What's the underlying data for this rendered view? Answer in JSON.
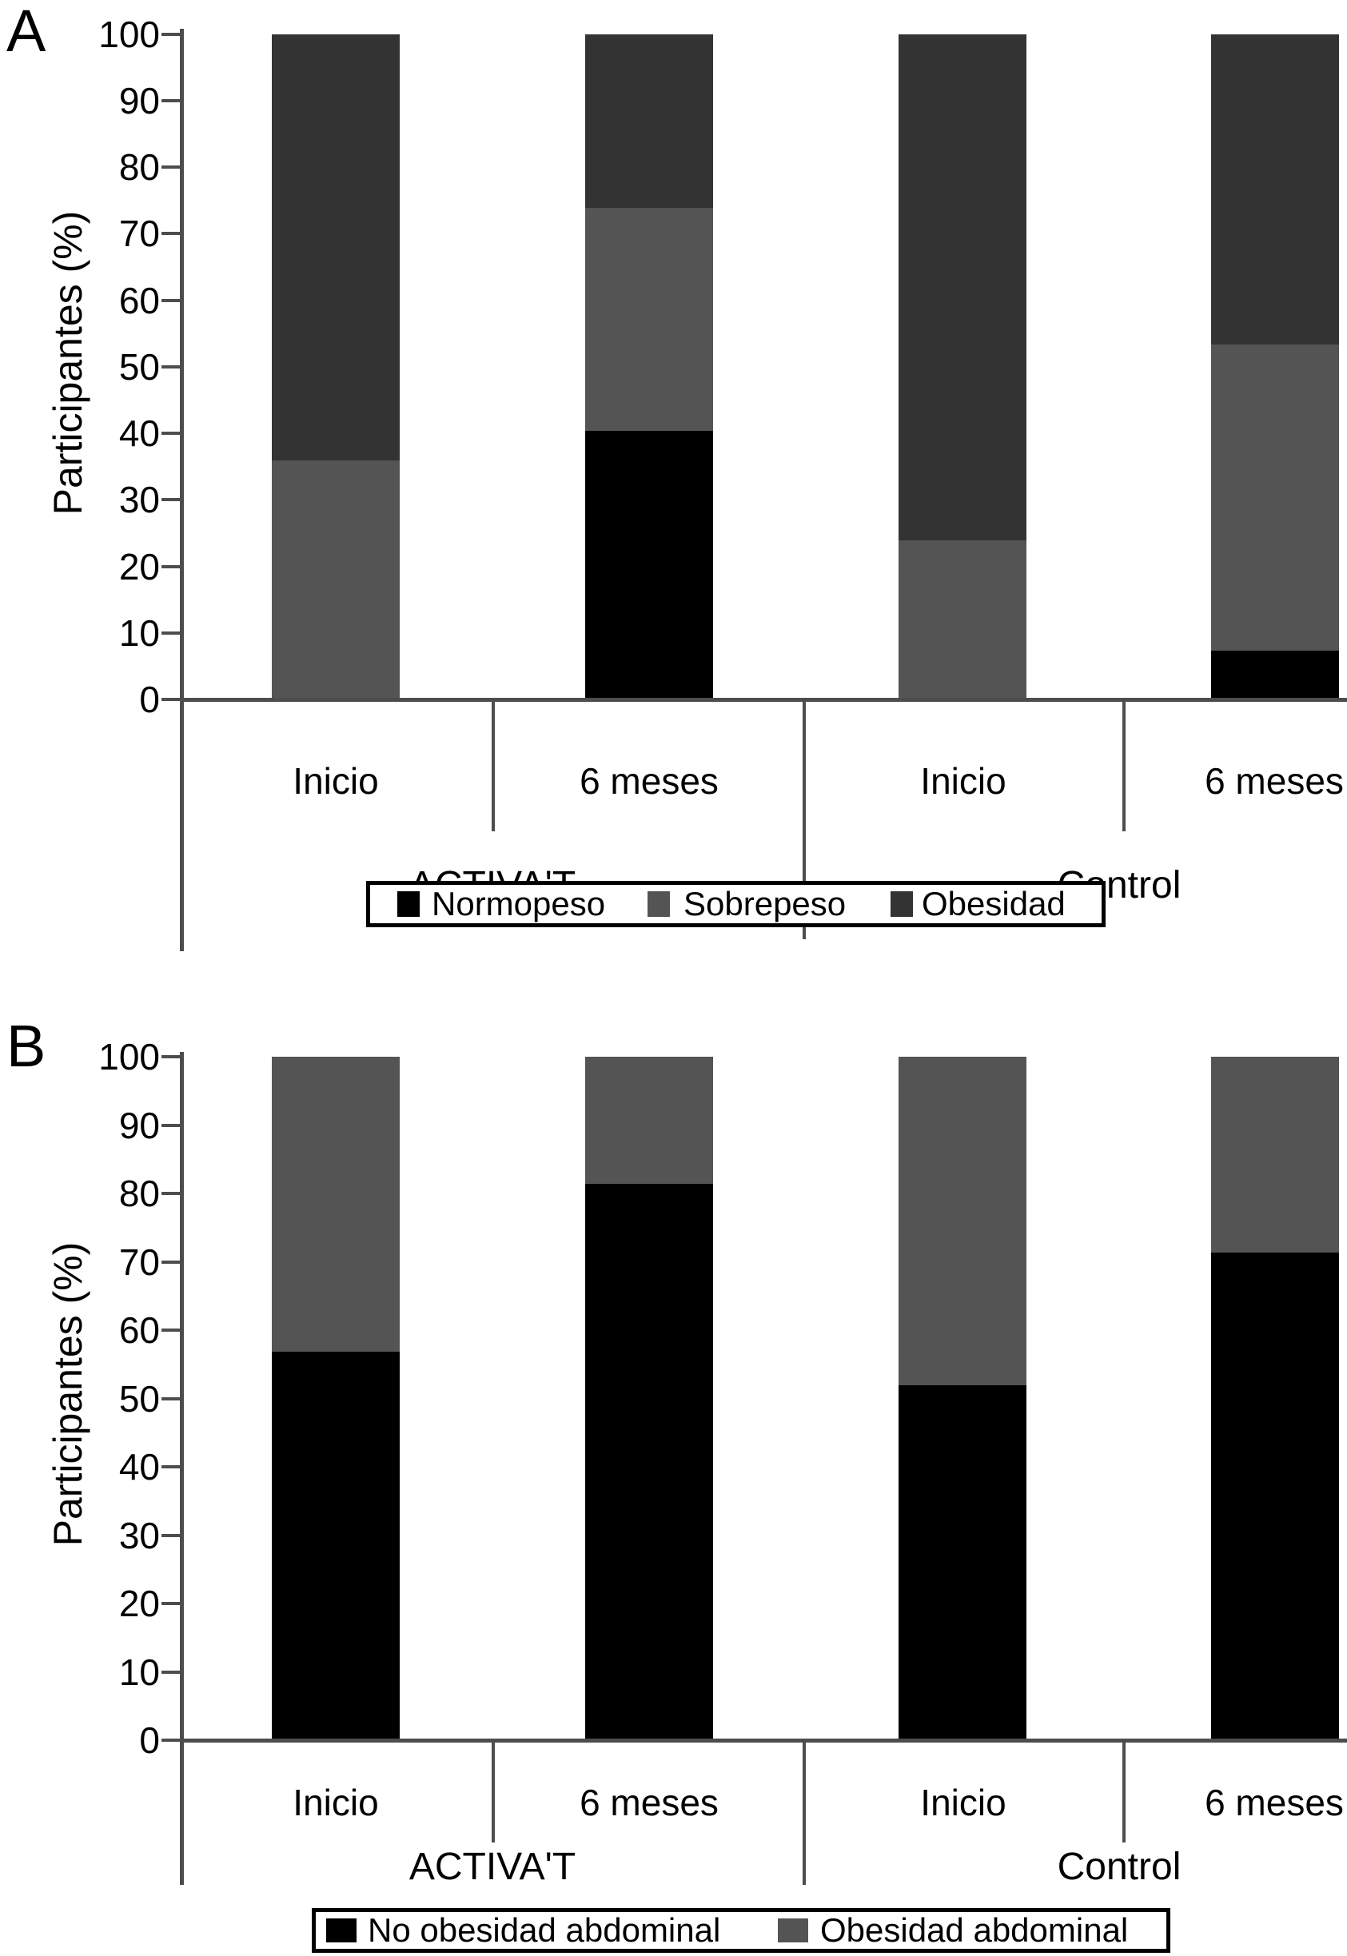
{
  "panels": [
    {
      "label": "A",
      "y_axis_title": "Participantes (%)",
      "y_tick_labels": [
        "0",
        "10",
        "20",
        "30",
        "40",
        "50",
        "60",
        "70",
        "80",
        "90",
        "100"
      ],
      "x_categories": [
        "Inicio",
        "6 meses",
        "Inicio",
        "6 meses"
      ],
      "group_labels": [
        "ACTIVA'T",
        "Control"
      ],
      "legend": [
        {
          "label": "Normopeso",
          "color": "#000000"
        },
        {
          "label": "Sobrepeso",
          "color": "#545454"
        },
        {
          "label": "Obesidad",
          "color": "#333333"
        }
      ]
    },
    {
      "label": "B",
      "y_axis_title": "Participantes (%)",
      "y_tick_labels": [
        "0",
        "10",
        "20",
        "30",
        "40",
        "50",
        "60",
        "70",
        "80",
        "90",
        "100"
      ],
      "x_categories": [
        "Inicio",
        "6 meses",
        "Inicio",
        "6 meses"
      ],
      "group_labels": [
        "ACTIVA'T",
        "Control"
      ],
      "legend": [
        {
          "label": "No obesidad abdominal",
          "color": "#000000"
        },
        {
          "label": "Obesidad abdominal",
          "color": "#545454"
        }
      ]
    }
  ],
  "chart_data": [
    {
      "type": "bar",
      "stacked": true,
      "panel": "A",
      "groups": [
        "ACTIVA'T",
        "Control"
      ],
      "categories": [
        "ACTIVA'T Inicio",
        "ACTIVA'T 6 meses",
        "Control Inicio",
        "Control 6 meses"
      ],
      "series": [
        {
          "name": "Normopeso",
          "color": "#000000",
          "values": [
            0,
            40.5,
            0,
            7.5
          ]
        },
        {
          "name": "Sobrepeso",
          "color": "#545454",
          "values": [
            36,
            33.5,
            24,
            46
          ]
        },
        {
          "name": "Obesidad",
          "color": "#333333",
          "values": [
            64,
            26,
            76,
            46.5
          ]
        }
      ],
      "ylabel": "Participantes (%)",
      "ylim": [
        0,
        100
      ],
      "ytick_step": 10,
      "grid": false,
      "legend_position": "bottom"
    },
    {
      "type": "bar",
      "stacked": true,
      "panel": "B",
      "groups": [
        "ACTIVA'T",
        "Control"
      ],
      "categories": [
        "ACTIVA'T Inicio",
        "ACTIVA'T 6 meses",
        "Control Inicio",
        "Control 6 meses"
      ],
      "series": [
        {
          "name": "No obesidad abdominal",
          "color": "#000000",
          "values": [
            57,
            81.5,
            52,
            71.5
          ]
        },
        {
          "name": "Obesidad abdominal",
          "color": "#545454",
          "values": [
            43,
            18.5,
            48,
            28.5
          ]
        }
      ],
      "ylabel": "Participantes (%)",
      "ylim": [
        0,
        100
      ],
      "ytick_step": 10,
      "grid": false,
      "legend_position": "bottom"
    }
  ]
}
